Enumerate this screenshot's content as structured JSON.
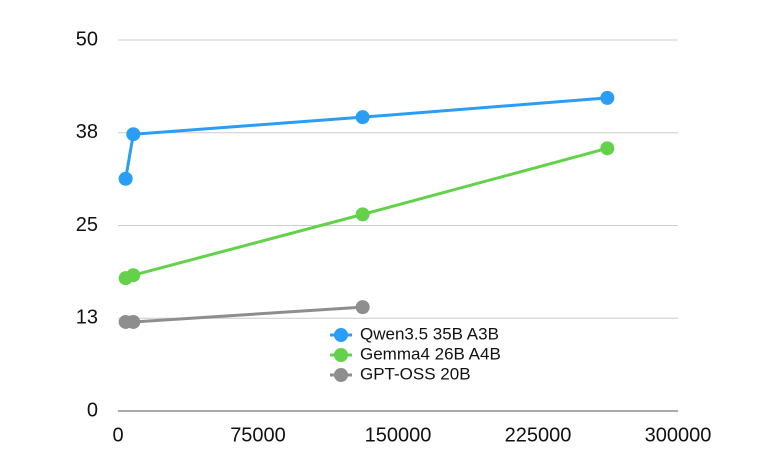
{
  "chart_data": {
    "type": "line",
    "x": [
      4096,
      8192,
      131072,
      262144
    ],
    "series": [
      {
        "name": "Qwen3.5 35B A3B",
        "color": "#2a9df4",
        "values": [
          31.3,
          37.3,
          39.6,
          42.2
        ]
      },
      {
        "name": "Gemma4 26B A4B",
        "color": "#63d24a",
        "values": [
          17.9,
          18.3,
          26.5,
          35.4
        ]
      },
      {
        "name": "GPT-OSS 20B",
        "color": "#8e8e8e",
        "values": [
          12.0,
          12.0,
          14.0,
          null
        ]
      }
    ],
    "xlim": [
      0,
      300000
    ],
    "xticks": [
      0,
      75000,
      150000,
      225000,
      300000
    ],
    "ylim": [
      0,
      50
    ],
    "yticks": [
      0,
      {
        "value": 12.5,
        "label": "13"
      },
      25,
      {
        "value": 37.5,
        "label": "38"
      },
      50
    ],
    "grid": true
  }
}
